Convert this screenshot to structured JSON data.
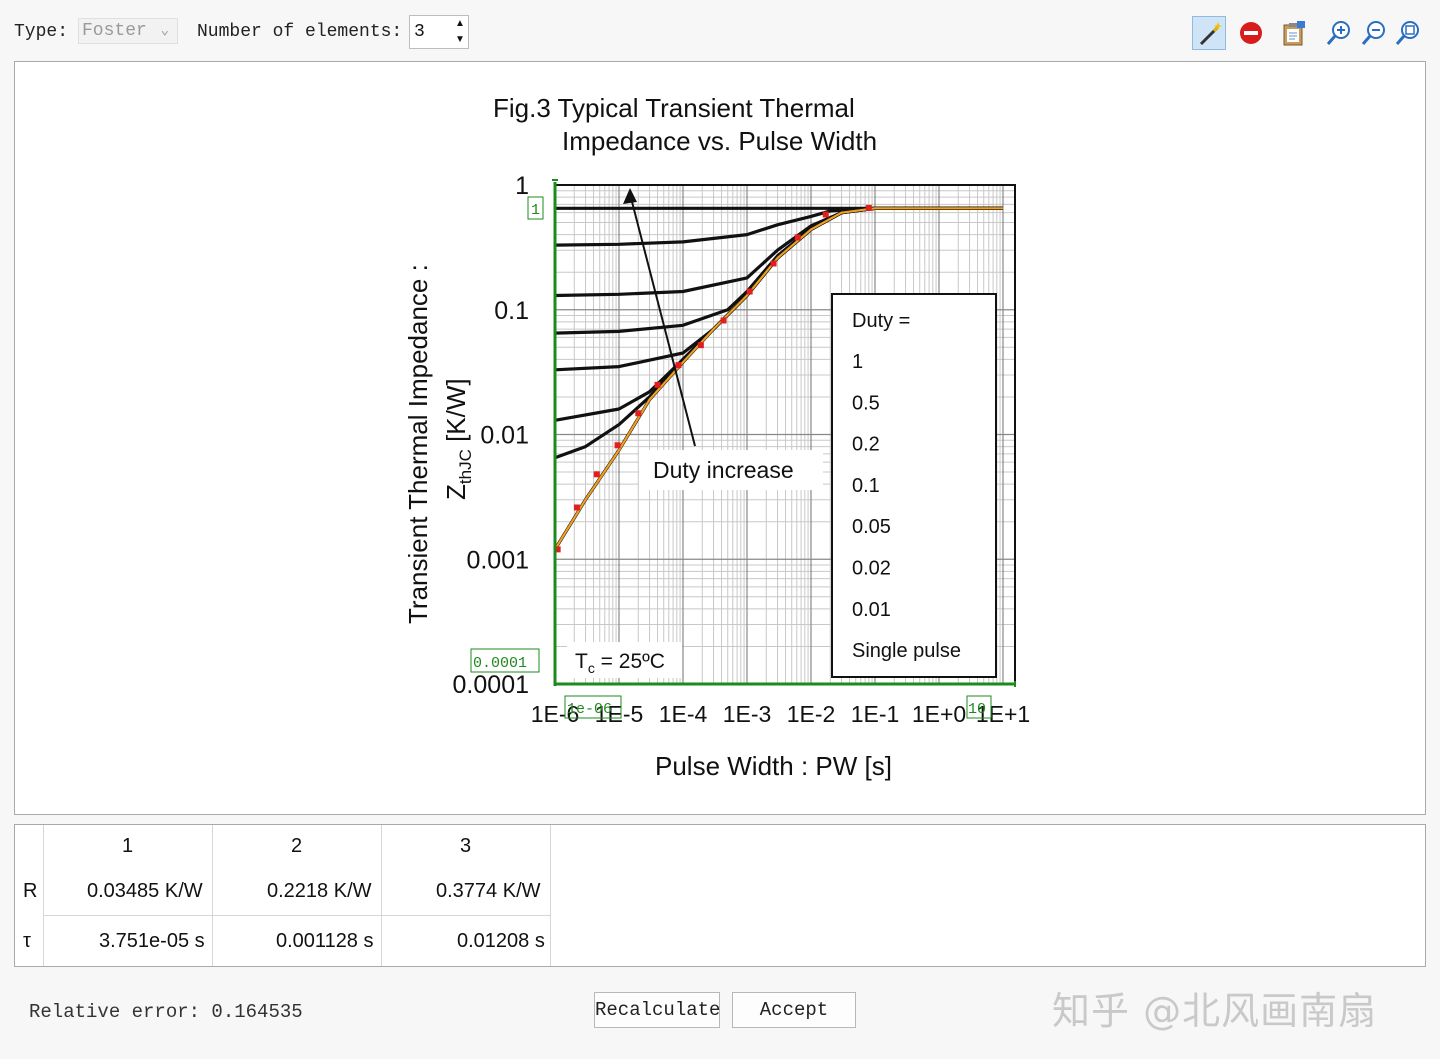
{
  "toolbar": {
    "type_label": "Type:",
    "type_value": "Foster",
    "elements_label": "Number of elements:",
    "elements_value": "3",
    "tools": [
      "magic-wand-icon",
      "remove-icon",
      "clipboard-icon",
      "zoom-in-icon",
      "zoom-out-icon",
      "zoom-fit-icon"
    ]
  },
  "chart": {
    "title_line1": "Fig.3 Typical Transient Thermal",
    "title_line2": "Impedance vs. Pulse Width",
    "ylabel_line1": "Transient Thermal Impedance :",
    "ylabel_line2_main": "Z",
    "ylabel_line2_sub": "thJC",
    "ylabel_line2_unit": " [K/W]",
    "xlabel": "Pulse Width : PW [s]",
    "y_ticks": [
      "1",
      "0.1",
      "0.01",
      "0.001",
      "0.0001"
    ],
    "x_ticks": [
      "1E-6",
      "1E-5",
      "1E-4",
      "1E-3",
      "1E-2",
      "1E-1",
      "1E+0",
      "1E+1"
    ],
    "legend_title": "Duty =",
    "legend_items": [
      "1",
      "0.5",
      "0.2",
      "0.1",
      "0.05",
      "0.02",
      "0.01",
      "Single pulse"
    ],
    "annotation": "Duty increase",
    "tc_main": "T",
    "tc_sub": "c",
    "tc_rest": " = 25ºC",
    "marker_y_top": "1",
    "marker_y_bottom": "0.0001",
    "marker_x_left": "1e-06",
    "marker_x_right": "10"
  },
  "chart_data": {
    "type": "line",
    "xlabel": "Pulse Width : PW [s]",
    "ylabel": "Transient Thermal Impedance : ZthJC [K/W]",
    "xscale": "log",
    "yscale": "log",
    "xlim": [
      1e-06,
      10
    ],
    "ylim": [
      0.0001,
      1
    ],
    "grid": true,
    "legend_placement": "right",
    "series": [
      {
        "name": "1",
        "x": [
          1e-06,
          10
        ],
        "y": [
          0.65,
          0.65
        ]
      },
      {
        "name": "0.5",
        "x": [
          1e-06,
          1e-05,
          0.0001,
          0.001,
          0.003,
          0.01,
          0.02,
          0.1,
          10
        ],
        "y": [
          0.33,
          0.335,
          0.35,
          0.4,
          0.48,
          0.56,
          0.62,
          0.65,
          0.65
        ]
      },
      {
        "name": "0.2",
        "x": [
          1e-06,
          1e-05,
          0.0001,
          0.001,
          0.003,
          0.01,
          0.03,
          0.1,
          10
        ],
        "y": [
          0.13,
          0.133,
          0.14,
          0.18,
          0.3,
          0.47,
          0.6,
          0.65,
          0.65
        ]
      },
      {
        "name": "0.1",
        "x": [
          1e-06,
          1e-05,
          0.0001,
          0.0005,
          0.001,
          0.003,
          0.01,
          0.03,
          0.1,
          10
        ],
        "y": [
          0.065,
          0.067,
          0.075,
          0.1,
          0.14,
          0.27,
          0.45,
          0.6,
          0.65,
          0.65
        ]
      },
      {
        "name": "0.05",
        "x": [
          1e-06,
          1e-05,
          0.0001,
          0.0003,
          0.001,
          0.003,
          0.01,
          0.03,
          0.1,
          10
        ],
        "y": [
          0.033,
          0.035,
          0.045,
          0.07,
          0.13,
          0.26,
          0.44,
          0.6,
          0.65,
          0.65
        ]
      },
      {
        "name": "0.02",
        "x": [
          1e-06,
          1e-05,
          3e-05,
          0.0001,
          0.0003,
          0.001,
          0.003,
          0.01,
          0.03,
          0.1,
          10
        ],
        "y": [
          0.013,
          0.016,
          0.022,
          0.04,
          0.07,
          0.13,
          0.26,
          0.44,
          0.6,
          0.65,
          0.65
        ]
      },
      {
        "name": "0.01",
        "x": [
          1e-06,
          3e-06,
          1e-05,
          3e-05,
          0.0001,
          0.0003,
          0.001,
          0.003,
          0.01,
          0.03,
          0.1,
          10
        ],
        "y": [
          0.0065,
          0.008,
          0.012,
          0.02,
          0.04,
          0.07,
          0.13,
          0.26,
          0.44,
          0.6,
          0.65,
          0.65
        ]
      },
      {
        "name": "Single pulse",
        "x": [
          1e-06,
          3e-06,
          1e-05,
          3e-05,
          0.0001,
          0.0003,
          0.001,
          0.003,
          0.01,
          0.03,
          0.1,
          10
        ],
        "y": [
          0.0012,
          0.003,
          0.0075,
          0.019,
          0.038,
          0.07,
          0.13,
          0.26,
          0.44,
          0.6,
          0.65,
          0.65
        ]
      }
    ],
    "fit": {
      "x": [
        1e-06,
        3e-06,
        1e-05,
        3e-05,
        0.0001,
        0.0003,
        0.001,
        0.003,
        0.01,
        0.03,
        0.1,
        10
      ],
      "y": [
        0.0012,
        0.003,
        0.0075,
        0.019,
        0.038,
        0.07,
        0.13,
        0.26,
        0.44,
        0.6,
        0.65,
        0.65
      ]
    },
    "sample_points": {
      "x": [
        1.1e-06,
        2.2e-06,
        4.5e-06,
        9.5e-06,
        2e-05,
        4e-05,
        8.5e-05,
        0.00019,
        0.00043,
        0.0011,
        0.0026,
        0.0062,
        0.017,
        0.08
      ],
      "y": [
        0.0012,
        0.0026,
        0.0048,
        0.0082,
        0.0148,
        0.025,
        0.036,
        0.052,
        0.082,
        0.14,
        0.235,
        0.38,
        0.58,
        0.655
      ]
    }
  },
  "table": {
    "headers": [
      "1",
      "2",
      "3"
    ],
    "rows": [
      {
        "label": "R",
        "values": [
          "0.03485 K/W",
          "0.2218 K/W",
          "0.3774 K/W"
        ]
      },
      {
        "label": "τ",
        "values": [
          "3.751e-05 s",
          "0.001128 s",
          "0.01208 s"
        ]
      }
    ]
  },
  "footer": {
    "relative_error": "Relative error: 0.164535",
    "recalculate": "Recalculate",
    "accept": "Accept",
    "watermark": "知乎 @北风画南扇"
  }
}
